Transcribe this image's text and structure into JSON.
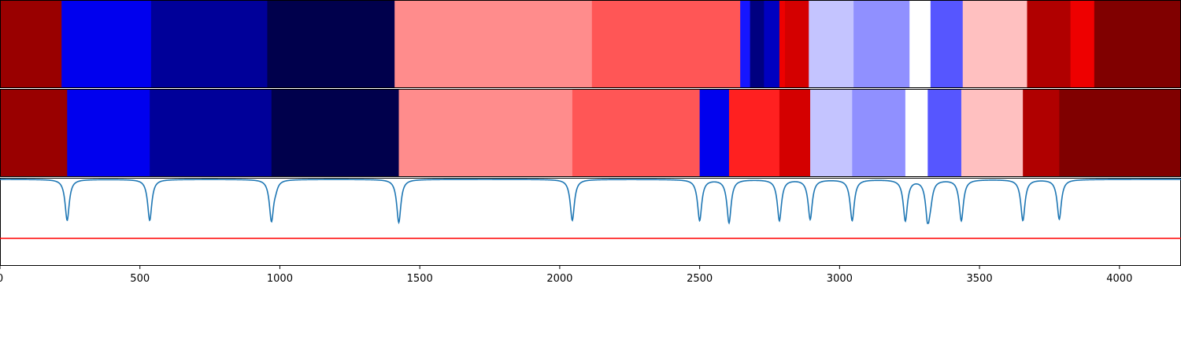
{
  "chart_data": {
    "type": "heatmap",
    "title": "",
    "xlabel": "",
    "ylabel": "",
    "xlim": [
      0,
      4220
    ],
    "xticks": [
      0,
      500,
      1000,
      1500,
      2000,
      2500,
      3000,
      3500,
      4000
    ],
    "xtick_labels": [
      "0",
      "500",
      "1000",
      "1500",
      "2000",
      "2500",
      "3000",
      "3500",
      "4000"
    ],
    "grid": false,
    "legend": "none",
    "colormap": "seismic",
    "segment_rows": [
      {
        "segments": [
          {
            "start": 0,
            "end": 220,
            "color": "#990000"
          },
          {
            "start": 220,
            "end": 540,
            "color": "#0000ee"
          },
          {
            "start": 540,
            "end": 955,
            "color": "#000099"
          },
          {
            "start": 955,
            "end": 1410,
            "color": "#00004c"
          },
          {
            "start": 1410,
            "end": 2115,
            "color": "#ff8c8c"
          },
          {
            "start": 2115,
            "end": 2645,
            "color": "#ff5656"
          },
          {
            "start": 2645,
            "end": 2680,
            "color": "#1616ff"
          },
          {
            "start": 2680,
            "end": 2730,
            "color": "#000080"
          },
          {
            "start": 2730,
            "end": 2785,
            "color": "#0000c0"
          },
          {
            "start": 2785,
            "end": 2805,
            "color": "#ee0000"
          },
          {
            "start": 2805,
            "end": 2890,
            "color": "#d40000"
          },
          {
            "start": 2890,
            "end": 3050,
            "color": "#c4c4ff"
          },
          {
            "start": 3050,
            "end": 3250,
            "color": "#9090ff"
          },
          {
            "start": 3250,
            "end": 3325,
            "color": "#ffffff"
          },
          {
            "start": 3325,
            "end": 3440,
            "color": "#5656ff"
          },
          {
            "start": 3440,
            "end": 3670,
            "color": "#ffc0c0"
          },
          {
            "start": 3670,
            "end": 3825,
            "color": "#b00000"
          },
          {
            "start": 3825,
            "end": 3910,
            "color": "#ee0000"
          },
          {
            "start": 3910,
            "end": 4220,
            "color": "#800000"
          }
        ]
      },
      {
        "segments": [
          {
            "start": 0,
            "end": 240,
            "color": "#990000"
          },
          {
            "start": 240,
            "end": 535,
            "color": "#0000ee"
          },
          {
            "start": 535,
            "end": 970,
            "color": "#000099"
          },
          {
            "start": 970,
            "end": 1425,
            "color": "#00004c"
          },
          {
            "start": 1425,
            "end": 2045,
            "color": "#ff8c8c"
          },
          {
            "start": 2045,
            "end": 2500,
            "color": "#ff5656"
          },
          {
            "start": 2500,
            "end": 2605,
            "color": "#0000ee"
          },
          {
            "start": 2605,
            "end": 2785,
            "color": "#ff2020"
          },
          {
            "start": 2785,
            "end": 2895,
            "color": "#d40000"
          },
          {
            "start": 2895,
            "end": 3045,
            "color": "#c4c4ff"
          },
          {
            "start": 3045,
            "end": 3235,
            "color": "#9090ff"
          },
          {
            "start": 3235,
            "end": 3315,
            "color": "#ffffff"
          },
          {
            "start": 3315,
            "end": 3435,
            "color": "#5656ff"
          },
          {
            "start": 3435,
            "end": 3655,
            "color": "#ffc0c0"
          },
          {
            "start": 3655,
            "end": 3785,
            "color": "#b00000"
          },
          {
            "start": 3785,
            "end": 4220,
            "color": "#800000"
          }
        ]
      }
    ],
    "signal": {
      "color": "#1f77b4",
      "baseline": 1.0,
      "dips": [
        {
          "x": 240,
          "depth": 0.93
        },
        {
          "x": 535,
          "depth": 0.93
        },
        {
          "x": 970,
          "depth": 0.93
        },
        {
          "x": 985,
          "depth": 0.12
        },
        {
          "x": 1425,
          "depth": 0.98
        },
        {
          "x": 2045,
          "depth": 0.93
        },
        {
          "x": 2500,
          "depth": 0.93
        },
        {
          "x": 2605,
          "depth": 0.98
        },
        {
          "x": 2785,
          "depth": 0.93
        },
        {
          "x": 2895,
          "depth": 0.9
        },
        {
          "x": 3045,
          "depth": 0.93
        },
        {
          "x": 3235,
          "depth": 0.93
        },
        {
          "x": 3315,
          "depth": 0.88
        },
        {
          "x": 3325,
          "depth": 0.3
        },
        {
          "x": 3435,
          "depth": 0.93
        },
        {
          "x": 3655,
          "depth": 0.93
        },
        {
          "x": 3785,
          "depth": 0.9
        }
      ]
    },
    "threshold": {
      "value": 0.0,
      "color": "#ff0000"
    }
  }
}
